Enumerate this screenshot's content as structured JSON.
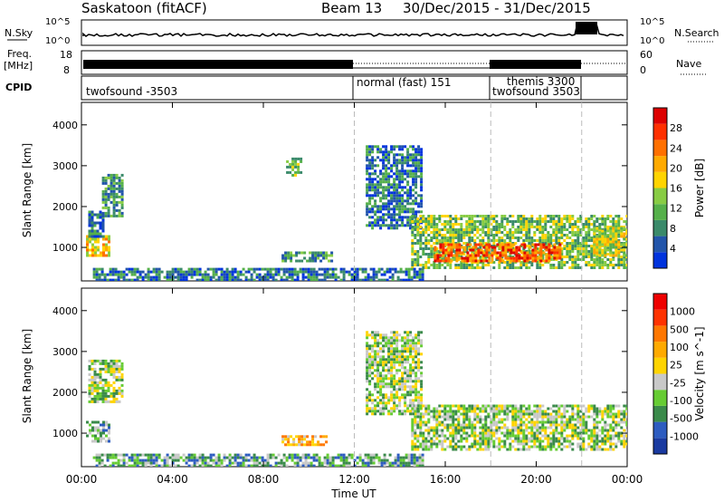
{
  "header": {
    "station": "Saskatoon (fitACF)",
    "beam": "Beam 13",
    "dates": "30/Dec/2015 - 31/Dec/2015"
  },
  "noise_panel": {
    "left_label": "N.Sky",
    "right_label": "N.Search",
    "left_ticks": [
      "10^5",
      "10^0"
    ],
    "right_ticks": [
      "10^5",
      "10^0"
    ]
  },
  "freq_panel": {
    "left_label_top": "Freq.",
    "left_label_unit": "[MHz]",
    "left_ticks": [
      "18",
      "8"
    ],
    "right_label": "Nave",
    "right_ticks": [
      "60",
      "0"
    ]
  },
  "cpid_panel": {
    "label": "CPID",
    "programs": [
      "twofsound -3503",
      "normal (fast) 151",
      "themis 3300",
      "twofsound 3503"
    ]
  },
  "chart_data": [
    {
      "type": "heatmap",
      "title": "Power",
      "ylabel": "Slant Range [km]",
      "ylim": [
        180,
        4550
      ],
      "yticks": [
        1000,
        2000,
        3000,
        4000
      ],
      "xlabel": "Time UT",
      "xlim": [
        0,
        24
      ],
      "xticks": [
        "00:00",
        "04:00",
        "08:00",
        "12:00",
        "16:00",
        "20:00",
        "00:00"
      ],
      "colorbar_label": "Power [dB]",
      "colorbar_ticks": [
        "28",
        "24",
        "20",
        "16",
        "12",
        "8",
        "4"
      ],
      "colorbar_colors": [
        "#0033dd",
        "#2255aa",
        "#3a8a6a",
        "#55b04a",
        "#88cc44",
        "#ffd400",
        "#ffaa00",
        "#ff7000",
        "#ff3000",
        "#dd0000"
      ],
      "dashed_lines_hours": [
        12,
        18,
        22
      ],
      "regions": [
        {
          "t0": 0.2,
          "t1": 1.2,
          "r0": 800,
          "r1": 1300,
          "c": 6
        },
        {
          "t0": 0.3,
          "t1": 0.9,
          "r0": 1300,
          "r1": 1900,
          "c": 2
        },
        {
          "t0": 0.9,
          "t1": 1.8,
          "r0": 1800,
          "r1": 2800,
          "c": 3
        },
        {
          "t0": 8.8,
          "t1": 11.0,
          "r0": 700,
          "r1": 900,
          "c": 3
        },
        {
          "t0": 9.0,
          "t1": 9.6,
          "r0": 2800,
          "r1": 3200,
          "c": 4
        },
        {
          "t0": 12.5,
          "t1": 15.0,
          "r0": 1500,
          "r1": 3500,
          "c": 2
        },
        {
          "t0": 14.5,
          "t1": 24.0,
          "r0": 500,
          "r1": 1800,
          "c": 4
        },
        {
          "t0": 15.5,
          "t1": 21.0,
          "r0": 700,
          "r1": 1100,
          "c": 8
        },
        {
          "t0": 22.5,
          "t1": 24.0,
          "r0": 800,
          "r1": 1500,
          "c": 5
        },
        {
          "t0": 0.5,
          "t1": 15.0,
          "r0": 180,
          "r1": 500,
          "c": 2
        }
      ]
    },
    {
      "type": "heatmap",
      "title": "Velocity",
      "ylabel": "Slant Range [km]",
      "ylim": [
        180,
        4550
      ],
      "yticks": [
        1000,
        2000,
        3000,
        4000
      ],
      "xlabel": "Time UT",
      "xlim": [
        0,
        24
      ],
      "xticks": [
        "00:00",
        "04:00",
        "08:00",
        "12:00",
        "16:00",
        "20:00",
        "00:00"
      ],
      "colorbar_label": "Velocity [m s^-1]",
      "colorbar_ticks": [
        "1000",
        "500",
        "100",
        "25",
        "-25",
        "-100",
        "-500",
        "-1000"
      ],
      "colorbar_colors": [
        "#1a3aa0",
        "#2d5cc0",
        "#3a8a4a",
        "#66cc33",
        "#c8c8c8",
        "#ffd400",
        "#ffaa00",
        "#ff7700",
        "#ff3300",
        "#ee0000"
      ],
      "dashed_lines_hours": [
        12,
        18,
        22
      ],
      "regions": [
        {
          "t0": 0.2,
          "t1": 1.2,
          "r0": 800,
          "r1": 1300,
          "c": 3
        },
        {
          "t0": 0.3,
          "t1": 1.8,
          "r0": 1800,
          "r1": 2800,
          "c": 4
        },
        {
          "t0": 8.8,
          "t1": 10.8,
          "r0": 700,
          "r1": 950,
          "c": 6
        },
        {
          "t0": 12.5,
          "t1": 15.0,
          "r0": 1500,
          "r1": 3500,
          "c": 4
        },
        {
          "t0": 14.5,
          "t1": 24.0,
          "r0": 600,
          "r1": 1700,
          "c": 4
        },
        {
          "t0": 0.5,
          "t1": 15.0,
          "r0": 180,
          "r1": 500,
          "c": 3
        }
      ]
    }
  ]
}
